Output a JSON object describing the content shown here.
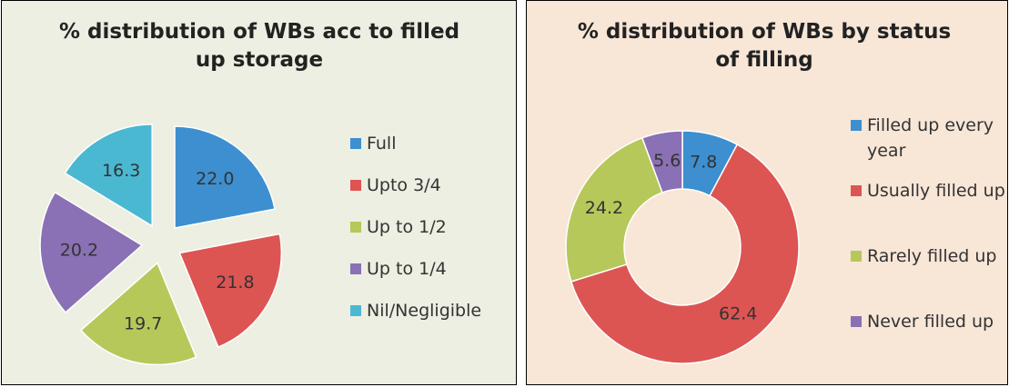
{
  "chart_data": [
    {
      "type": "pie",
      "exploded": true,
      "title": "% distribution of WBs acc to filled up storage",
      "categories": [
        "Full",
        "Upto 3/4",
        "Up to 1/2",
        "Up to 1/4",
        "Nil/Negligible"
      ],
      "values": [
        22.0,
        21.8,
        19.7,
        20.2,
        16.3
      ],
      "value_labels": [
        "22.0",
        "21.8",
        "19.7",
        "20.2",
        "16.3"
      ],
      "colors": [
        "#3d8fcf",
        "#dc5553",
        "#b6c85a",
        "#8a70b4",
        "#4bb8d2"
      ]
    },
    {
      "type": "donut",
      "title": "% distribution of WBs by status of filling",
      "categories": [
        "Filled up every year",
        "Usually filled up",
        "Rarely filled up",
        "Never filled up"
      ],
      "values": [
        7.8,
        62.4,
        24.2,
        5.6
      ],
      "value_labels": [
        "7.8",
        "62.4",
        "24.2",
        "5.6"
      ],
      "colors": [
        "#3d8fcf",
        "#dc5553",
        "#b6c85a",
        "#8a70b4"
      ]
    }
  ]
}
